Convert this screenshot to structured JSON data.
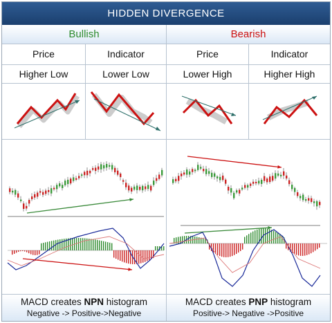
{
  "title": "HIDDEN DIVERGENCE",
  "bullish": {
    "heading": "Bullish",
    "price_label": "Price",
    "indicator_label": "Indicator",
    "price_pattern": "Higher Low",
    "indicator_pattern": "Lower Low",
    "footer_prefix": "MACD creates ",
    "footer_strong": "NPN",
    "footer_suffix": " histogram",
    "footer_sequence": "Negative -> Positive->Negative"
  },
  "bearish": {
    "heading": "Bearish",
    "price_label": "Price",
    "indicator_label": "Indicator",
    "price_pattern": "Lower High",
    "indicator_pattern": "Higher High",
    "footer_prefix": "MACD creates ",
    "footer_strong": "PNP",
    "footer_suffix": " histogram",
    "footer_sequence": "Positive-> Negative ->Positive"
  },
  "colors": {
    "bull": "#2e8b2e",
    "bear": "#cc1111",
    "header": "#1f4a80",
    "trend_teal": "#2d6f6a"
  }
}
